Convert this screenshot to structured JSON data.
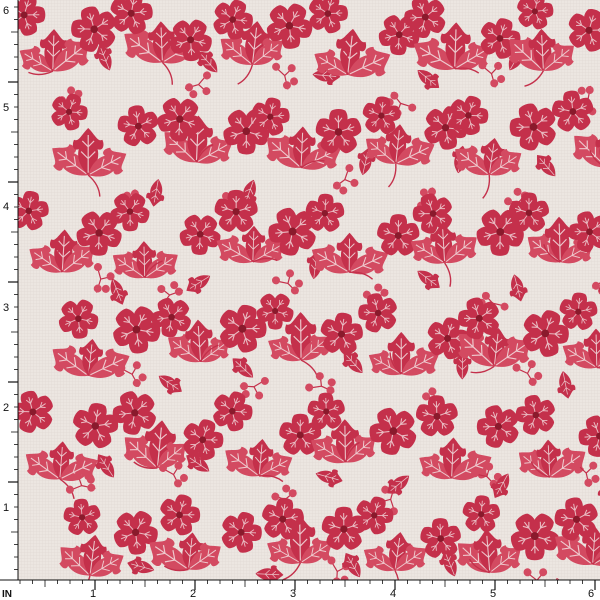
{
  "swatch": {
    "background_color": "#ece6e1",
    "print_color": "#c4304b",
    "print_color_light": "#d34a61",
    "flower_center_color": "#8a1a2c",
    "vein_color": "#f2dfe0"
  },
  "ruler": {
    "unit_label": "IN",
    "bottom_labels": [
      "1",
      "2",
      "3",
      "4",
      "5",
      "6"
    ],
    "left_labels": [
      "6",
      "5",
      "4",
      "3",
      "2",
      "1"
    ],
    "color": "#111111"
  }
}
